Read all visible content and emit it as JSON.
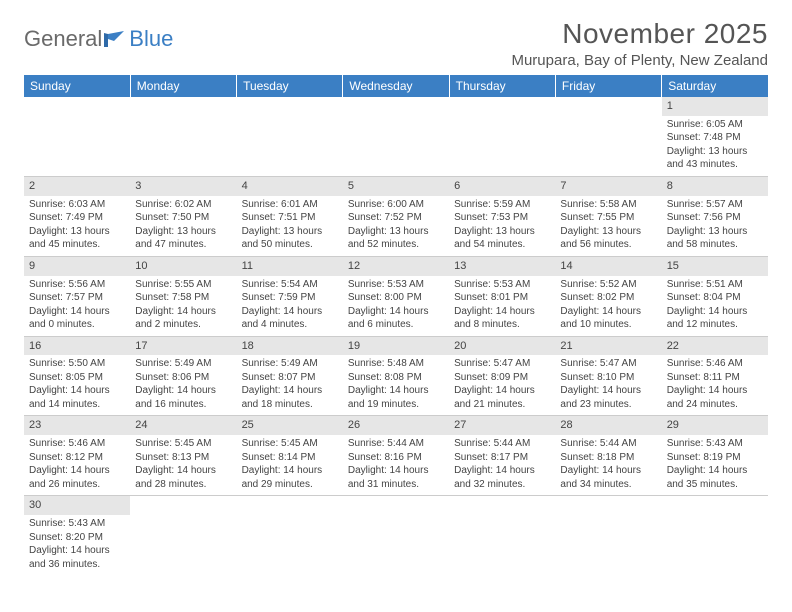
{
  "logo": {
    "text_a": "General",
    "text_b": "Blue"
  },
  "header": {
    "title": "November 2025",
    "location": "Murupara, Bay of Plenty, New Zealand"
  },
  "colors": {
    "header_bg": "#3b7fc4",
    "header_text": "#ffffff",
    "daynum_bg": "#e6e6e6",
    "grid_line": "#cccccc",
    "body_text": "#444444",
    "title_text": "#555555",
    "logo_gray": "#6a6a6a",
    "logo_blue": "#3b7fc4"
  },
  "typography": {
    "title_fontsize": 28,
    "location_fontsize": 15,
    "dayheader_fontsize": 12,
    "cell_fontsize": 10,
    "font_family": "Arial"
  },
  "calendar": {
    "day_headers": [
      "Sunday",
      "Monday",
      "Tuesday",
      "Wednesday",
      "Thursday",
      "Friday",
      "Saturday"
    ],
    "weeks": [
      [
        null,
        null,
        null,
        null,
        null,
        null,
        {
          "n": "1",
          "r": "Sunrise: 6:05 AM",
          "s": "Sunset: 7:48 PM",
          "d1": "Daylight: 13 hours",
          "d2": "and 43 minutes."
        }
      ],
      [
        {
          "n": "2",
          "r": "Sunrise: 6:03 AM",
          "s": "Sunset: 7:49 PM",
          "d1": "Daylight: 13 hours",
          "d2": "and 45 minutes."
        },
        {
          "n": "3",
          "r": "Sunrise: 6:02 AM",
          "s": "Sunset: 7:50 PM",
          "d1": "Daylight: 13 hours",
          "d2": "and 47 minutes."
        },
        {
          "n": "4",
          "r": "Sunrise: 6:01 AM",
          "s": "Sunset: 7:51 PM",
          "d1": "Daylight: 13 hours",
          "d2": "and 50 minutes."
        },
        {
          "n": "5",
          "r": "Sunrise: 6:00 AM",
          "s": "Sunset: 7:52 PM",
          "d1": "Daylight: 13 hours",
          "d2": "and 52 minutes."
        },
        {
          "n": "6",
          "r": "Sunrise: 5:59 AM",
          "s": "Sunset: 7:53 PM",
          "d1": "Daylight: 13 hours",
          "d2": "and 54 minutes."
        },
        {
          "n": "7",
          "r": "Sunrise: 5:58 AM",
          "s": "Sunset: 7:55 PM",
          "d1": "Daylight: 13 hours",
          "d2": "and 56 minutes."
        },
        {
          "n": "8",
          "r": "Sunrise: 5:57 AM",
          "s": "Sunset: 7:56 PM",
          "d1": "Daylight: 13 hours",
          "d2": "and 58 minutes."
        }
      ],
      [
        {
          "n": "9",
          "r": "Sunrise: 5:56 AM",
          "s": "Sunset: 7:57 PM",
          "d1": "Daylight: 14 hours",
          "d2": "and 0 minutes."
        },
        {
          "n": "10",
          "r": "Sunrise: 5:55 AM",
          "s": "Sunset: 7:58 PM",
          "d1": "Daylight: 14 hours",
          "d2": "and 2 minutes."
        },
        {
          "n": "11",
          "r": "Sunrise: 5:54 AM",
          "s": "Sunset: 7:59 PM",
          "d1": "Daylight: 14 hours",
          "d2": "and 4 minutes."
        },
        {
          "n": "12",
          "r": "Sunrise: 5:53 AM",
          "s": "Sunset: 8:00 PM",
          "d1": "Daylight: 14 hours",
          "d2": "and 6 minutes."
        },
        {
          "n": "13",
          "r": "Sunrise: 5:53 AM",
          "s": "Sunset: 8:01 PM",
          "d1": "Daylight: 14 hours",
          "d2": "and 8 minutes."
        },
        {
          "n": "14",
          "r": "Sunrise: 5:52 AM",
          "s": "Sunset: 8:02 PM",
          "d1": "Daylight: 14 hours",
          "d2": "and 10 minutes."
        },
        {
          "n": "15",
          "r": "Sunrise: 5:51 AM",
          "s": "Sunset: 8:04 PM",
          "d1": "Daylight: 14 hours",
          "d2": "and 12 minutes."
        }
      ],
      [
        {
          "n": "16",
          "r": "Sunrise: 5:50 AM",
          "s": "Sunset: 8:05 PM",
          "d1": "Daylight: 14 hours",
          "d2": "and 14 minutes."
        },
        {
          "n": "17",
          "r": "Sunrise: 5:49 AM",
          "s": "Sunset: 8:06 PM",
          "d1": "Daylight: 14 hours",
          "d2": "and 16 minutes."
        },
        {
          "n": "18",
          "r": "Sunrise: 5:49 AM",
          "s": "Sunset: 8:07 PM",
          "d1": "Daylight: 14 hours",
          "d2": "and 18 minutes."
        },
        {
          "n": "19",
          "r": "Sunrise: 5:48 AM",
          "s": "Sunset: 8:08 PM",
          "d1": "Daylight: 14 hours",
          "d2": "and 19 minutes."
        },
        {
          "n": "20",
          "r": "Sunrise: 5:47 AM",
          "s": "Sunset: 8:09 PM",
          "d1": "Daylight: 14 hours",
          "d2": "and 21 minutes."
        },
        {
          "n": "21",
          "r": "Sunrise: 5:47 AM",
          "s": "Sunset: 8:10 PM",
          "d1": "Daylight: 14 hours",
          "d2": "and 23 minutes."
        },
        {
          "n": "22",
          "r": "Sunrise: 5:46 AM",
          "s": "Sunset: 8:11 PM",
          "d1": "Daylight: 14 hours",
          "d2": "and 24 minutes."
        }
      ],
      [
        {
          "n": "23",
          "r": "Sunrise: 5:46 AM",
          "s": "Sunset: 8:12 PM",
          "d1": "Daylight: 14 hours",
          "d2": "and 26 minutes."
        },
        {
          "n": "24",
          "r": "Sunrise: 5:45 AM",
          "s": "Sunset: 8:13 PM",
          "d1": "Daylight: 14 hours",
          "d2": "and 28 minutes."
        },
        {
          "n": "25",
          "r": "Sunrise: 5:45 AM",
          "s": "Sunset: 8:14 PM",
          "d1": "Daylight: 14 hours",
          "d2": "and 29 minutes."
        },
        {
          "n": "26",
          "r": "Sunrise: 5:44 AM",
          "s": "Sunset: 8:16 PM",
          "d1": "Daylight: 14 hours",
          "d2": "and 31 minutes."
        },
        {
          "n": "27",
          "r": "Sunrise: 5:44 AM",
          "s": "Sunset: 8:17 PM",
          "d1": "Daylight: 14 hours",
          "d2": "and 32 minutes."
        },
        {
          "n": "28",
          "r": "Sunrise: 5:44 AM",
          "s": "Sunset: 8:18 PM",
          "d1": "Daylight: 14 hours",
          "d2": "and 34 minutes."
        },
        {
          "n": "29",
          "r": "Sunrise: 5:43 AM",
          "s": "Sunset: 8:19 PM",
          "d1": "Daylight: 14 hours",
          "d2": "and 35 minutes."
        }
      ],
      [
        {
          "n": "30",
          "r": "Sunrise: 5:43 AM",
          "s": "Sunset: 8:20 PM",
          "d1": "Daylight: 14 hours",
          "d2": "and 36 minutes."
        },
        null,
        null,
        null,
        null,
        null,
        null
      ]
    ]
  }
}
